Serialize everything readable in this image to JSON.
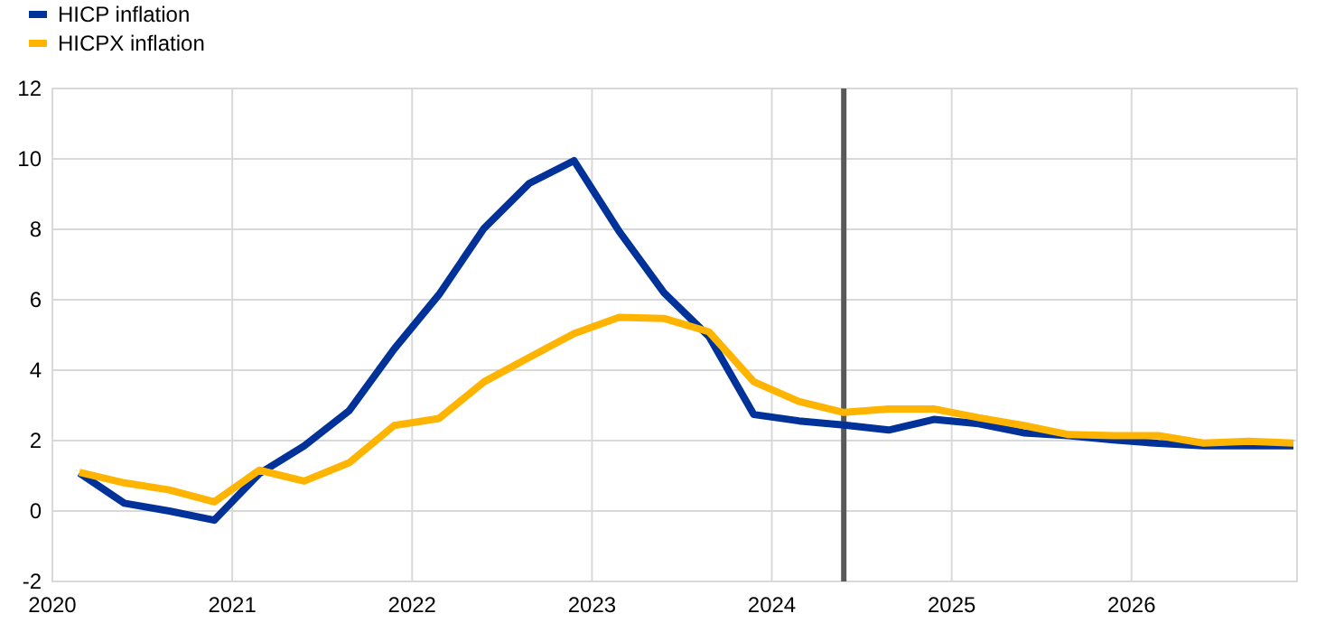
{
  "chart_data": {
    "type": "line",
    "x": [
      2020.15,
      2020.4,
      2020.65,
      2020.9,
      2021.15,
      2021.4,
      2021.65,
      2021.9,
      2022.15,
      2022.4,
      2022.65,
      2022.9,
      2023.15,
      2023.4,
      2023.65,
      2023.9,
      2024.15,
      2024.4,
      2024.65,
      2024.9,
      2025.15,
      2025.4,
      2025.65,
      2025.9,
      2026.15,
      2026.4,
      2026.65,
      2026.9
    ],
    "series": [
      {
        "name": "HICP inflation",
        "color": "#003299",
        "values": [
          1.08,
          0.22,
          0.0,
          -0.26,
          1.06,
          1.85,
          2.85,
          4.6,
          6.15,
          8.03,
          9.3,
          9.95,
          7.95,
          6.2,
          4.96,
          2.74,
          2.56,
          2.44,
          2.3,
          2.6,
          2.48,
          2.22,
          2.14,
          2.02,
          1.92,
          1.85,
          1.85,
          1.85
        ]
      },
      {
        "name": "HICPX inflation",
        "color": "#ffb400",
        "values": [
          1.1,
          0.8,
          0.6,
          0.26,
          1.16,
          0.85,
          1.37,
          2.43,
          2.63,
          3.67,
          4.36,
          5.04,
          5.5,
          5.47,
          5.09,
          3.67,
          3.11,
          2.8,
          2.9,
          2.9,
          2.65,
          2.43,
          2.17,
          2.14,
          2.14,
          1.93,
          1.98,
          1.93
        ]
      }
    ],
    "xlim": [
      2020,
      2026.92
    ],
    "xticks": [
      2020,
      2021,
      2022,
      2023,
      2024,
      2025,
      2026
    ],
    "ylim": [
      -2,
      12
    ],
    "yticks": [
      -2,
      0,
      2,
      4,
      6,
      8,
      10,
      12
    ],
    "ref_lines": [
      {
        "axis": "x",
        "value": 2024.4,
        "color": "#595959"
      }
    ],
    "grid": true,
    "legend": "top left",
    "marker": "none",
    "line_style": "solid"
  }
}
